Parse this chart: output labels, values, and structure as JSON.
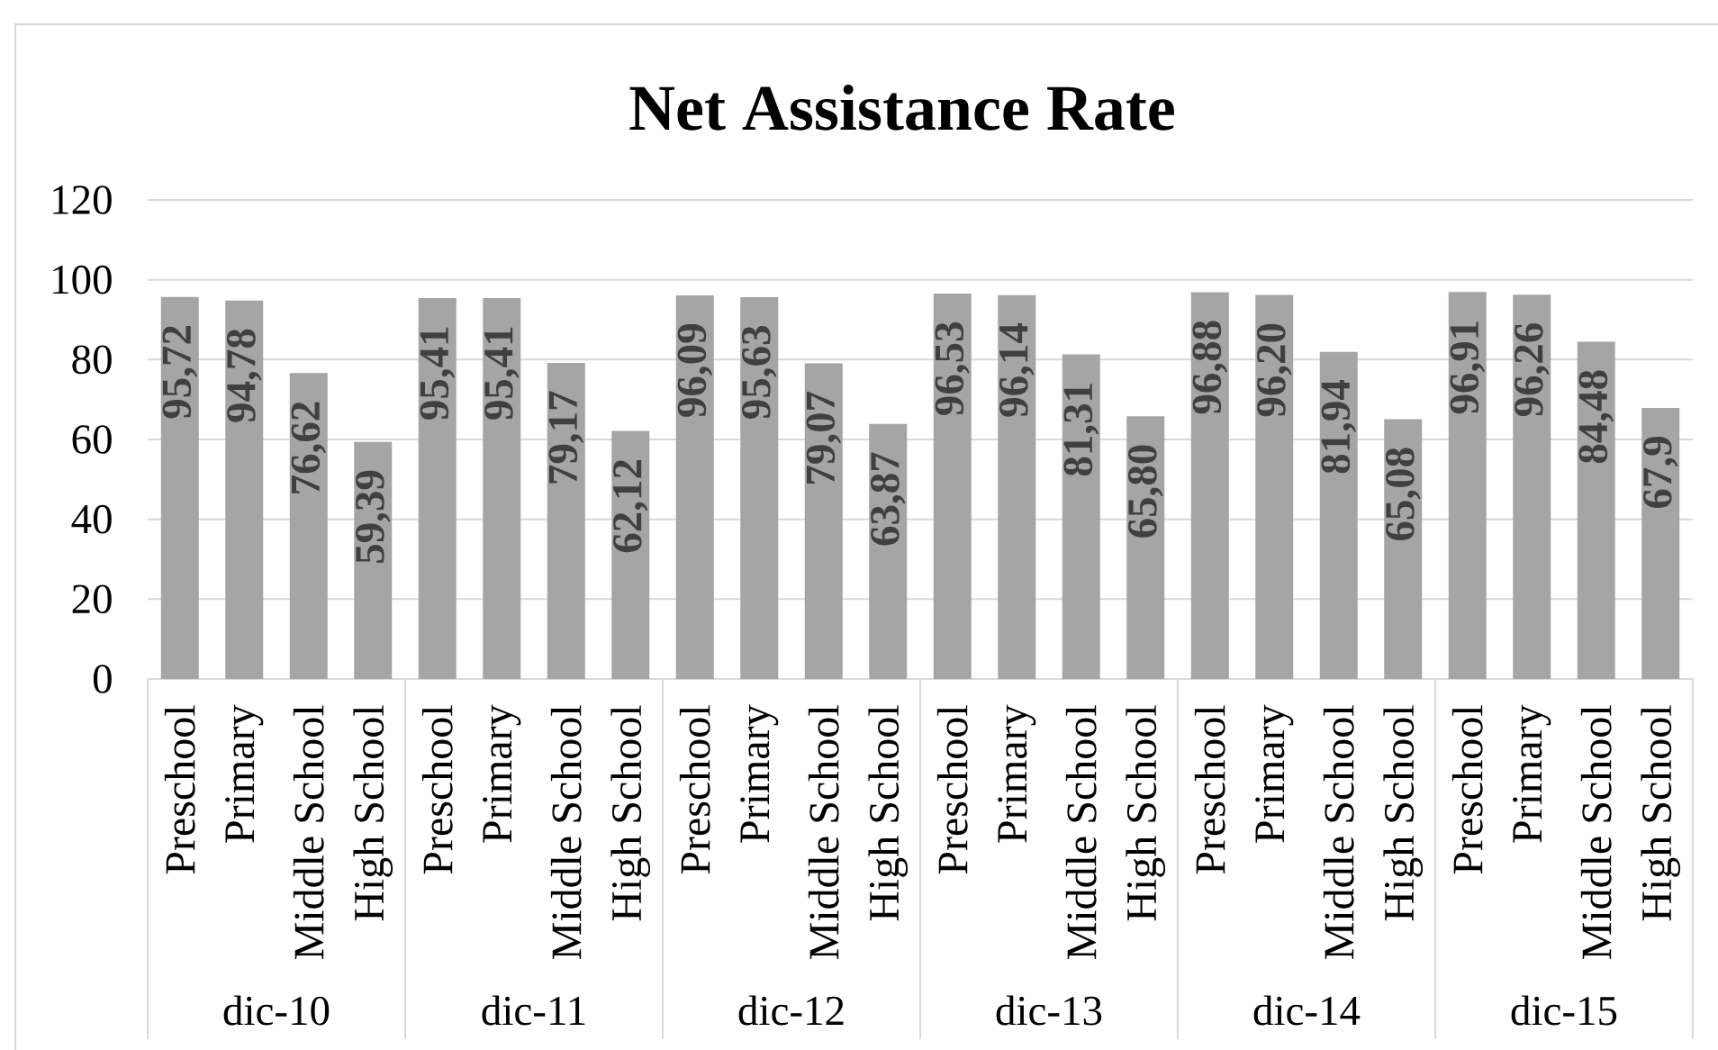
{
  "chart_data": {
    "type": "bar",
    "title": "Net Assistance Rate",
    "categories": [
      "Preschool",
      "Primary",
      "Middle School",
      "High School",
      "Preschool",
      "Primary",
      "Middle School",
      "High School",
      "Preschool",
      "Primary",
      "Middle School",
      "High School",
      "Preschool",
      "Primary",
      "Middle School",
      "High School",
      "Preschool",
      "Primary",
      "Middle School",
      "High School",
      "Preschool",
      "Primary",
      "Middle School",
      "High School"
    ],
    "values": [
      95.72,
      94.78,
      76.62,
      59.39,
      95.41,
      95.41,
      79.17,
      62.12,
      96.09,
      95.63,
      79.07,
      63.87,
      96.53,
      96.14,
      81.31,
      65.8,
      96.88,
      96.2,
      81.94,
      65.08,
      96.91,
      96.26,
      84.48,
      67.9
    ],
    "value_labels": [
      "95,72",
      "94,78",
      "76,62",
      "59,39",
      "95,41",
      "95,41",
      "79,17",
      "62,12",
      "96,09",
      "95,63",
      "79,07",
      "63,87",
      "96,53",
      "96,14",
      "81,31",
      "65,80",
      "96,88",
      "96,20",
      "81,94",
      "65,08",
      "96,91",
      "96,26",
      "84,48",
      "67,9"
    ],
    "color": "#a5a5a5",
    "ylim": [
      0,
      120
    ],
    "yticks": [
      0,
      20,
      40,
      60,
      80,
      100,
      120
    ],
    "grid": "y",
    "annotations": [
      "dic-10",
      "dic-11",
      "dic-12",
      "dic-13",
      "dic-14",
      "dic-15"
    ]
  }
}
